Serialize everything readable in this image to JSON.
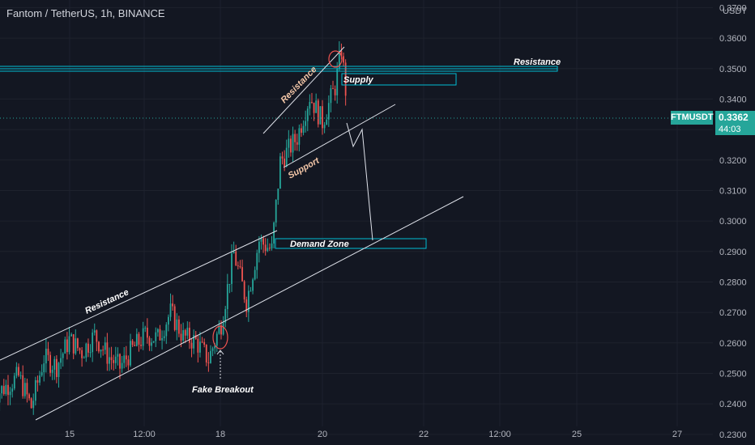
{
  "header": {
    "title": "Fantom / TetherUS, 1h, BINANCE",
    "currency": "USDT"
  },
  "last_price": {
    "symbol": "FTMUSDT",
    "value": "0.3362",
    "countdown": "44:03",
    "color": "#26a69a"
  },
  "colors": {
    "background": "#131722",
    "up": "#26a69a",
    "down": "#ef5350",
    "zone": "#00bcd4",
    "text": "#d1d4dc"
  },
  "annotations": {
    "resistance_top": "Resistance",
    "supply": "Supply",
    "resistance_wedge": "Resistance",
    "support_wedge": "Support",
    "demand_zone": "Demand Zone",
    "resistance_channel": "Resistance",
    "fake_breakout": "Fake Breakout"
  },
  "chart_data": {
    "type": "candlestick",
    "title": "Fantom / TetherUS, 1h, BINANCE",
    "ylabel": "USDT",
    "ylim": [
      0.2265,
      0.3725
    ],
    "y_ticks": [
      "0.3700",
      "0.3600",
      "0.3500",
      "0.3400",
      "0.3300",
      "0.3200",
      "0.3100",
      "0.3000",
      "0.2900",
      "0.2800",
      "0.2700",
      "0.2600",
      "0.2500",
      "0.2400",
      "0.2300"
    ],
    "x_ticks": [
      "15",
      "12:00",
      "18",
      "20",
      "22",
      "12:00",
      "25",
      "27"
    ],
    "last_value": 0.3362,
    "grid": true,
    "anchors": [
      [
        "13 12:00",
        0.2425
      ],
      [
        "14 00:00",
        0.249
      ],
      [
        "14 06:00",
        0.239
      ],
      [
        "14 12:00",
        0.255
      ],
      [
        "14 18:00",
        0.2525
      ],
      [
        "15 00:00",
        0.261
      ],
      [
        "15 06:00",
        0.257
      ],
      [
        "15 12:00",
        0.2625
      ],
      [
        "15 18:00",
        0.256
      ],
      [
        "16 00:00",
        0.252
      ],
      [
        "16 06:00",
        0.258
      ],
      [
        "16 12:00",
        0.2625
      ],
      [
        "16 18:00",
        0.2615
      ],
      [
        "17 00:00",
        0.27
      ],
      [
        "17 06:00",
        0.262
      ],
      [
        "17 12:00",
        0.2605
      ],
      [
        "17 18:00",
        0.2545
      ],
      [
        "18 00:00",
        0.2665
      ],
      [
        "18 06:00",
        0.2895
      ],
      [
        "18 12:00",
        0.2735
      ],
      [
        "18 18:00",
        0.2935
      ],
      [
        "19 00:00",
        0.2905
      ],
      [
        "19 04:00",
        0.3195
      ],
      [
        "19 12:00",
        0.3275
      ],
      [
        "19 18:00",
        0.341
      ],
      [
        "20 00:00",
        0.3325
      ],
      [
        "20 06:00",
        0.344
      ],
      [
        "20 09:00",
        0.3565
      ],
      [
        "20 12:00",
        0.3362
      ]
    ]
  }
}
